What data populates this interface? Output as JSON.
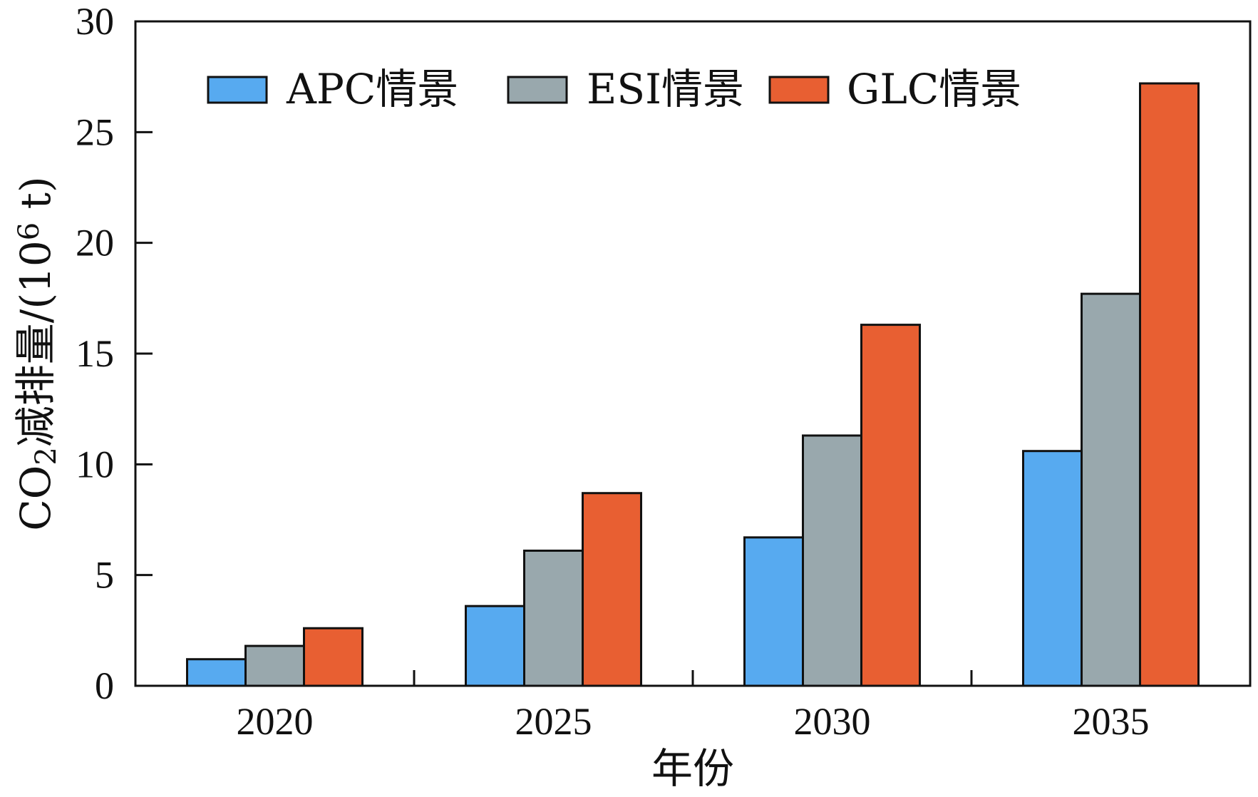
{
  "chart_data": {
    "type": "bar",
    "categories": [
      "2020",
      "2025",
      "2030",
      "2035"
    ],
    "series": [
      {
        "name": "APC情景",
        "values": [
          1.2,
          3.6,
          6.7,
          10.6
        ],
        "color": "#57aaf0"
      },
      {
        "name": "ESI情景",
        "values": [
          1.8,
          6.1,
          11.3,
          17.7
        ],
        "color": "#99a8ad"
      },
      {
        "name": "GLC情景",
        "values": [
          2.6,
          8.7,
          16.3,
          27.2
        ],
        "color": "#e85f32"
      }
    ],
    "xlabel": "年份",
    "ylabel": {
      "prefix": "CO",
      "subscript": "2",
      "middle": "减排量/(10",
      "superscript": "6",
      "suffix": " t)"
    },
    "ylim": [
      0,
      30
    ],
    "yticks": [
      "0",
      "5",
      "10",
      "15",
      "20",
      "25",
      "30"
    ],
    "legend": "top-left",
    "grid": false
  }
}
